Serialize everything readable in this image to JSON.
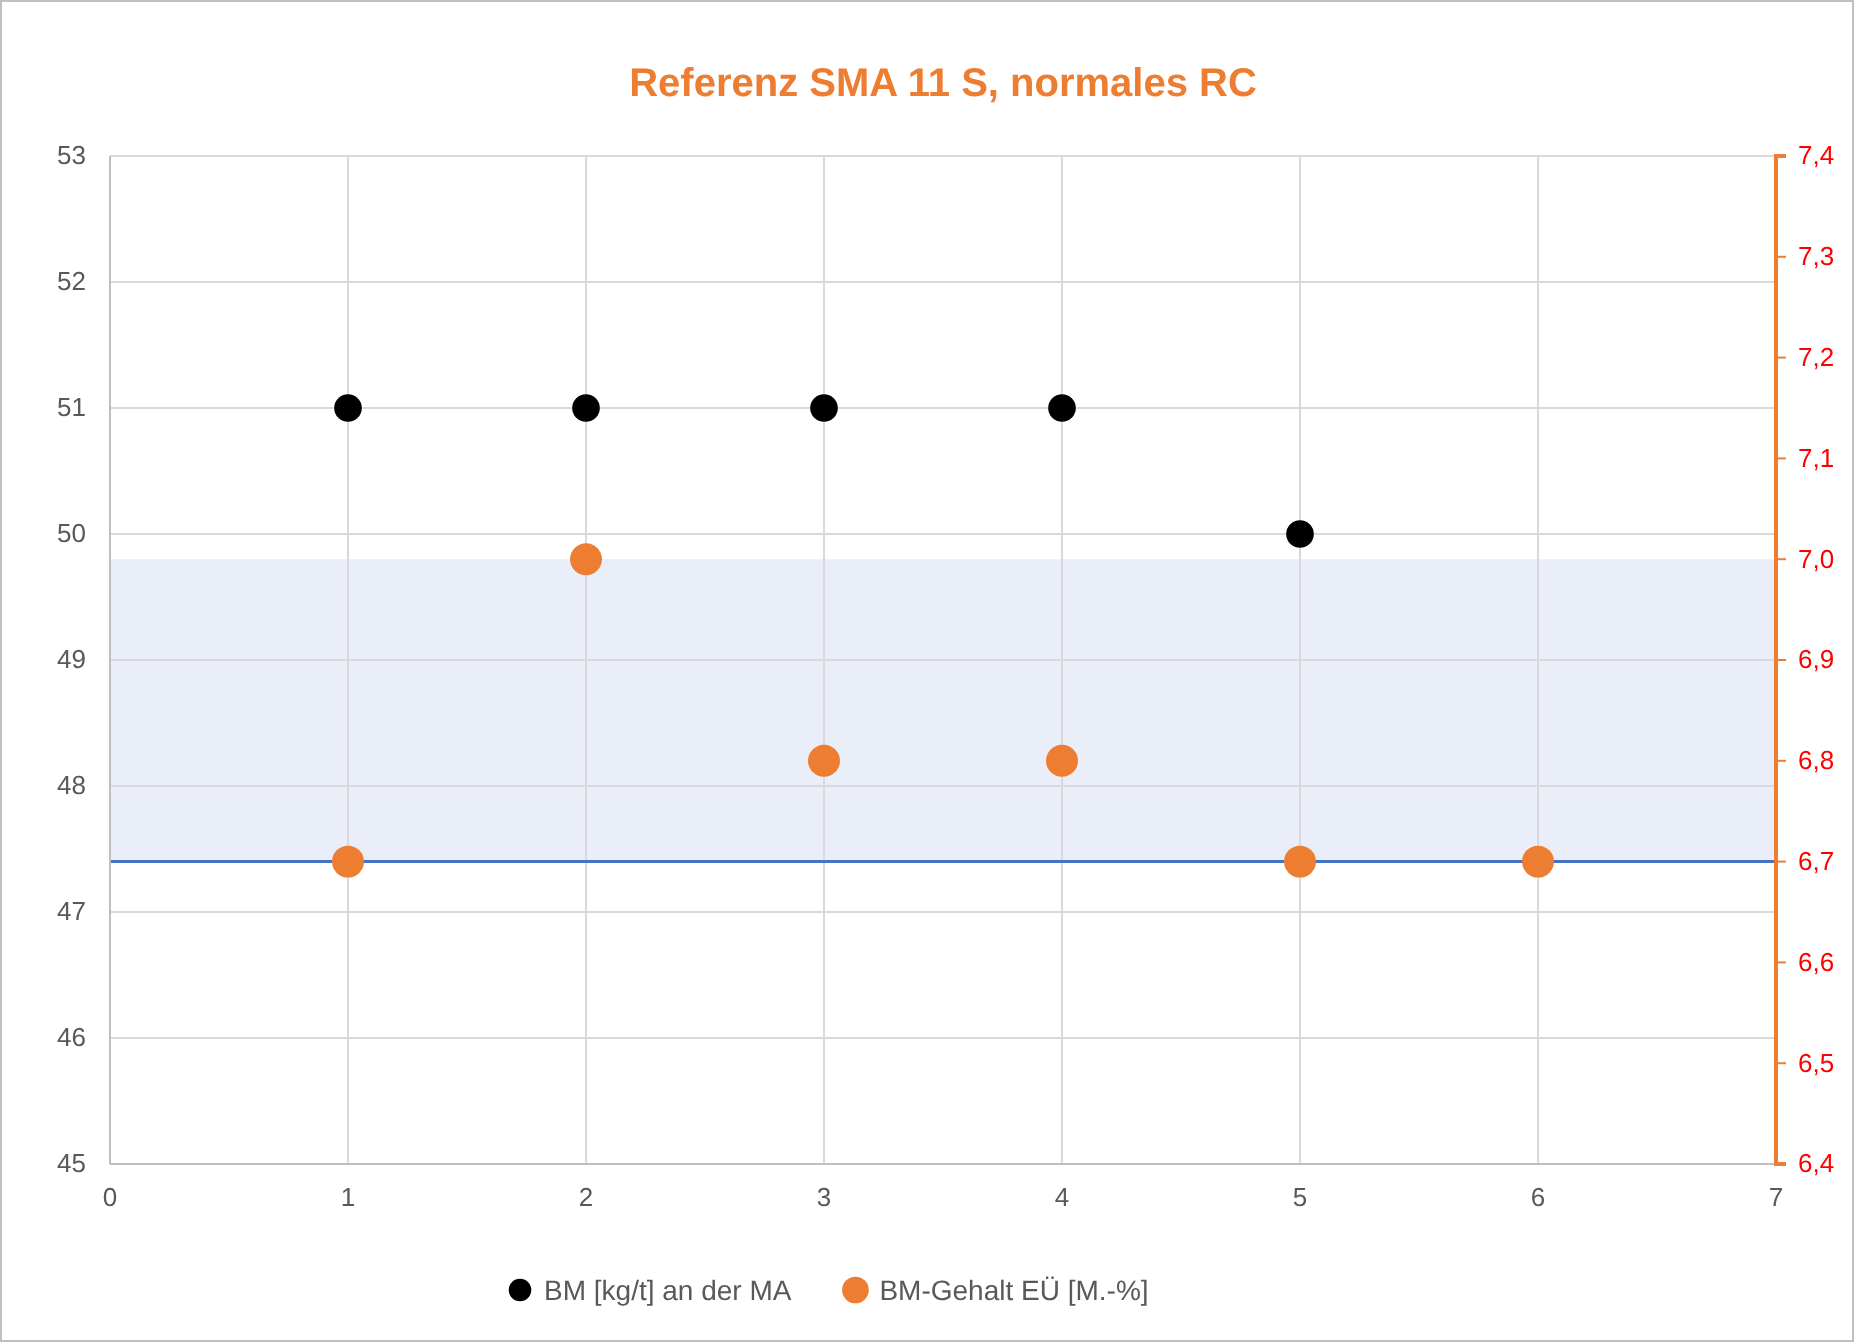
{
  "chart_data": {
    "type": "scatter",
    "title": "Referenz SMA 11 S, normales RC",
    "series": [
      {
        "name": "BM [kg/t] an der MA",
        "color": "#000000",
        "x": [
          1,
          2,
          3,
          4,
          5
        ],
        "values": [
          51,
          51,
          51,
          51,
          50
        ]
      },
      {
        "name": "BM-Gehalt EÜ [M.-%]",
        "color": "#ed7d31",
        "axis": "y2",
        "x": [
          1,
          2,
          3,
          4,
          5,
          6
        ],
        "values": [
          6.7,
          7.0,
          6.8,
          6.8,
          6.7,
          6.7
        ]
      }
    ],
    "xlim": [
      0,
      7
    ],
    "xticks": [
      0,
      1,
      2,
      3,
      4,
      5,
      6,
      7
    ],
    "ylim": [
      45,
      53
    ],
    "yticks": [
      45,
      46,
      47,
      48,
      49,
      50,
      51,
      52,
      53
    ],
    "y2lim": [
      6.4,
      7.4
    ],
    "y2ticks": [
      {
        "value": 6.4,
        "label": "6,4"
      },
      {
        "value": 6.5,
        "label": "6,5"
      },
      {
        "value": 6.6,
        "label": "6,6"
      },
      {
        "value": 6.7,
        "label": "6,7"
      },
      {
        "value": 6.8,
        "label": "6,8"
      },
      {
        "value": 6.9,
        "label": "6,9"
      },
      {
        "value": 7.0,
        "label": "7,0"
      },
      {
        "value": 7.1,
        "label": "7,1"
      },
      {
        "value": 7.2,
        "label": "7,2"
      },
      {
        "value": 7.3,
        "label": "7,3"
      },
      {
        "value": 7.4,
        "label": "7,4"
      }
    ],
    "bands": [
      {
        "axis": "y2",
        "from": 6.7,
        "to": 7.0,
        "color": "#e9eef8"
      }
    ],
    "ref_lines": [
      {
        "axis": "y2",
        "value": 6.7,
        "color": "#4472c4",
        "line_style": "solid"
      }
    ],
    "grid": true,
    "legend": "bottom",
    "marker": "circle"
  }
}
